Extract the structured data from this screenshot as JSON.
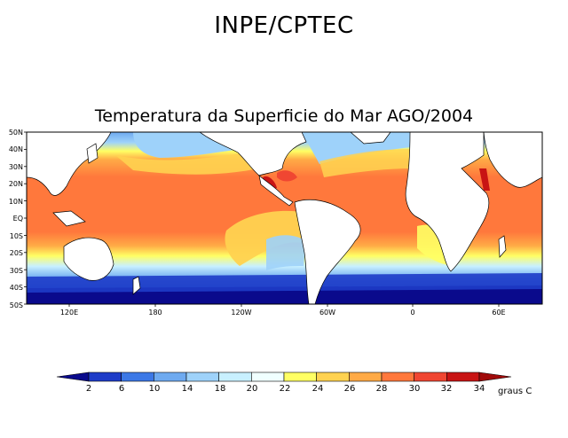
{
  "header": {
    "title": "INPE/CPTEC"
  },
  "map": {
    "title": "Temperatura da Superficie do Mar AGO/2004",
    "lat_labels": [
      "50N",
      "40N",
      "30N",
      "20N",
      "10N",
      "EQ",
      "10S",
      "20S",
      "30S",
      "40S",
      "50S"
    ],
    "lon_labels": [
      "120E",
      "180",
      "120W",
      "60W",
      "0",
      "60E"
    ]
  },
  "colorbar": {
    "labels": [
      "2",
      "6",
      "10",
      "14",
      "18",
      "20",
      "22",
      "24",
      "26",
      "28",
      "30",
      "32",
      "34"
    ],
    "units": "graus C",
    "colors": [
      "#0a0a8c",
      "#1e3cc8",
      "#3c78e6",
      "#6eaaf0",
      "#9ed2fa",
      "#c8f0ff",
      "#f0ffff",
      "#ffff64",
      "#ffd250",
      "#ffaa46",
      "#ff783c",
      "#f04632",
      "#c81414",
      "#a00a0a"
    ]
  }
}
